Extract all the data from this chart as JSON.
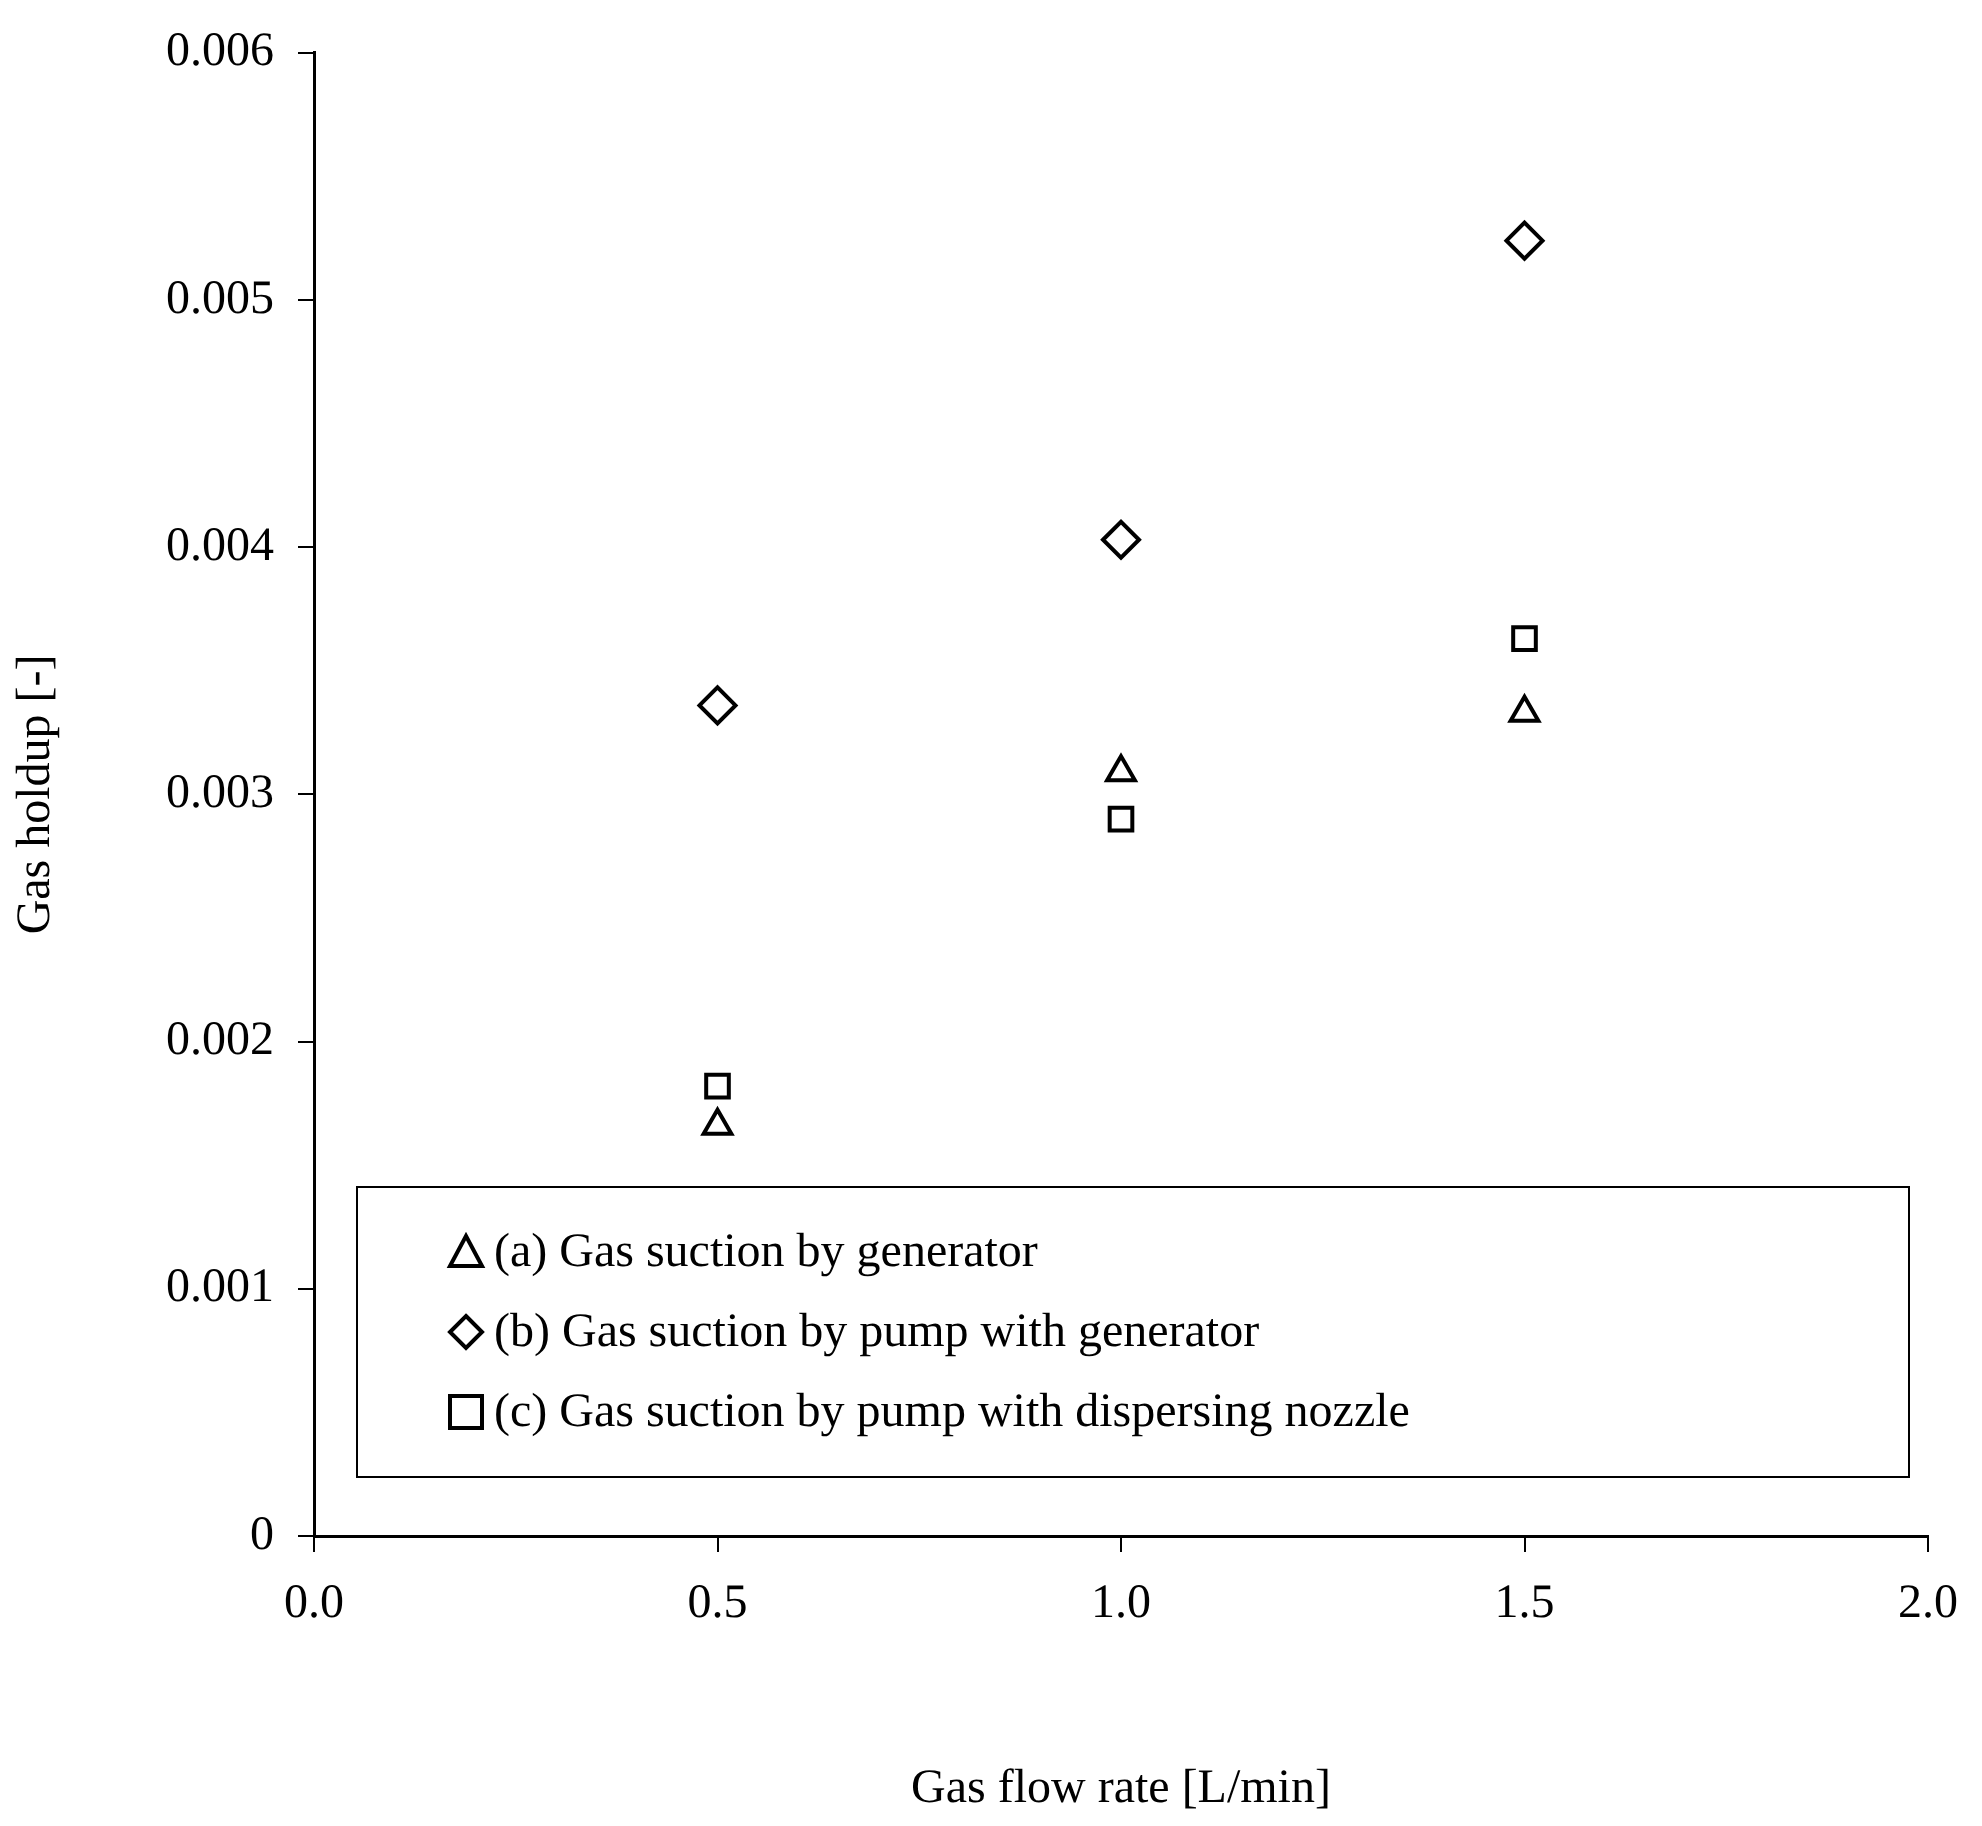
{
  "chart_data": {
    "type": "scatter",
    "xlabel": "Gas flow rate [L/min]",
    "ylabel": "Gas holdup [-]",
    "xlim": [
      0,
      2
    ],
    "xticks": [
      {
        "value": 0,
        "label": "0.0"
      },
      {
        "value": 0.5,
        "label": "0.5"
      },
      {
        "value": 1,
        "label": "1.0"
      },
      {
        "value": 1.5,
        "label": "1.5"
      },
      {
        "value": 2,
        "label": "2.0"
      }
    ],
    "ylim": [
      0,
      0.006
    ],
    "yticks": [
      0,
      0.001,
      0.002,
      0.003,
      0.004,
      0.005,
      0.006
    ],
    "grid": false,
    "legend": "bottom",
    "series": [
      {
        "name": "(a) Gas suction by generator",
        "color": "#000000",
        "marker": "triangle",
        "x": [
          0.5,
          1,
          1.5
        ],
        "values": [
          0.00166,
          0.00309,
          0.00333
        ]
      },
      {
        "name": "(b) Gas suction by pump with generator",
        "color": "#000000",
        "marker": "diamond",
        "x": [
          0.5,
          1,
          1.5
        ],
        "values": [
          0.00336,
          0.00403,
          0.00524
        ]
      },
      {
        "name": "(c) Gas suction by pump with dispersing nozzle",
        "color": "#000000",
        "marker": "square",
        "x": [
          0.5,
          1,
          1.5
        ],
        "values": [
          0.00182,
          0.0029,
          0.00363
        ]
      }
    ]
  }
}
